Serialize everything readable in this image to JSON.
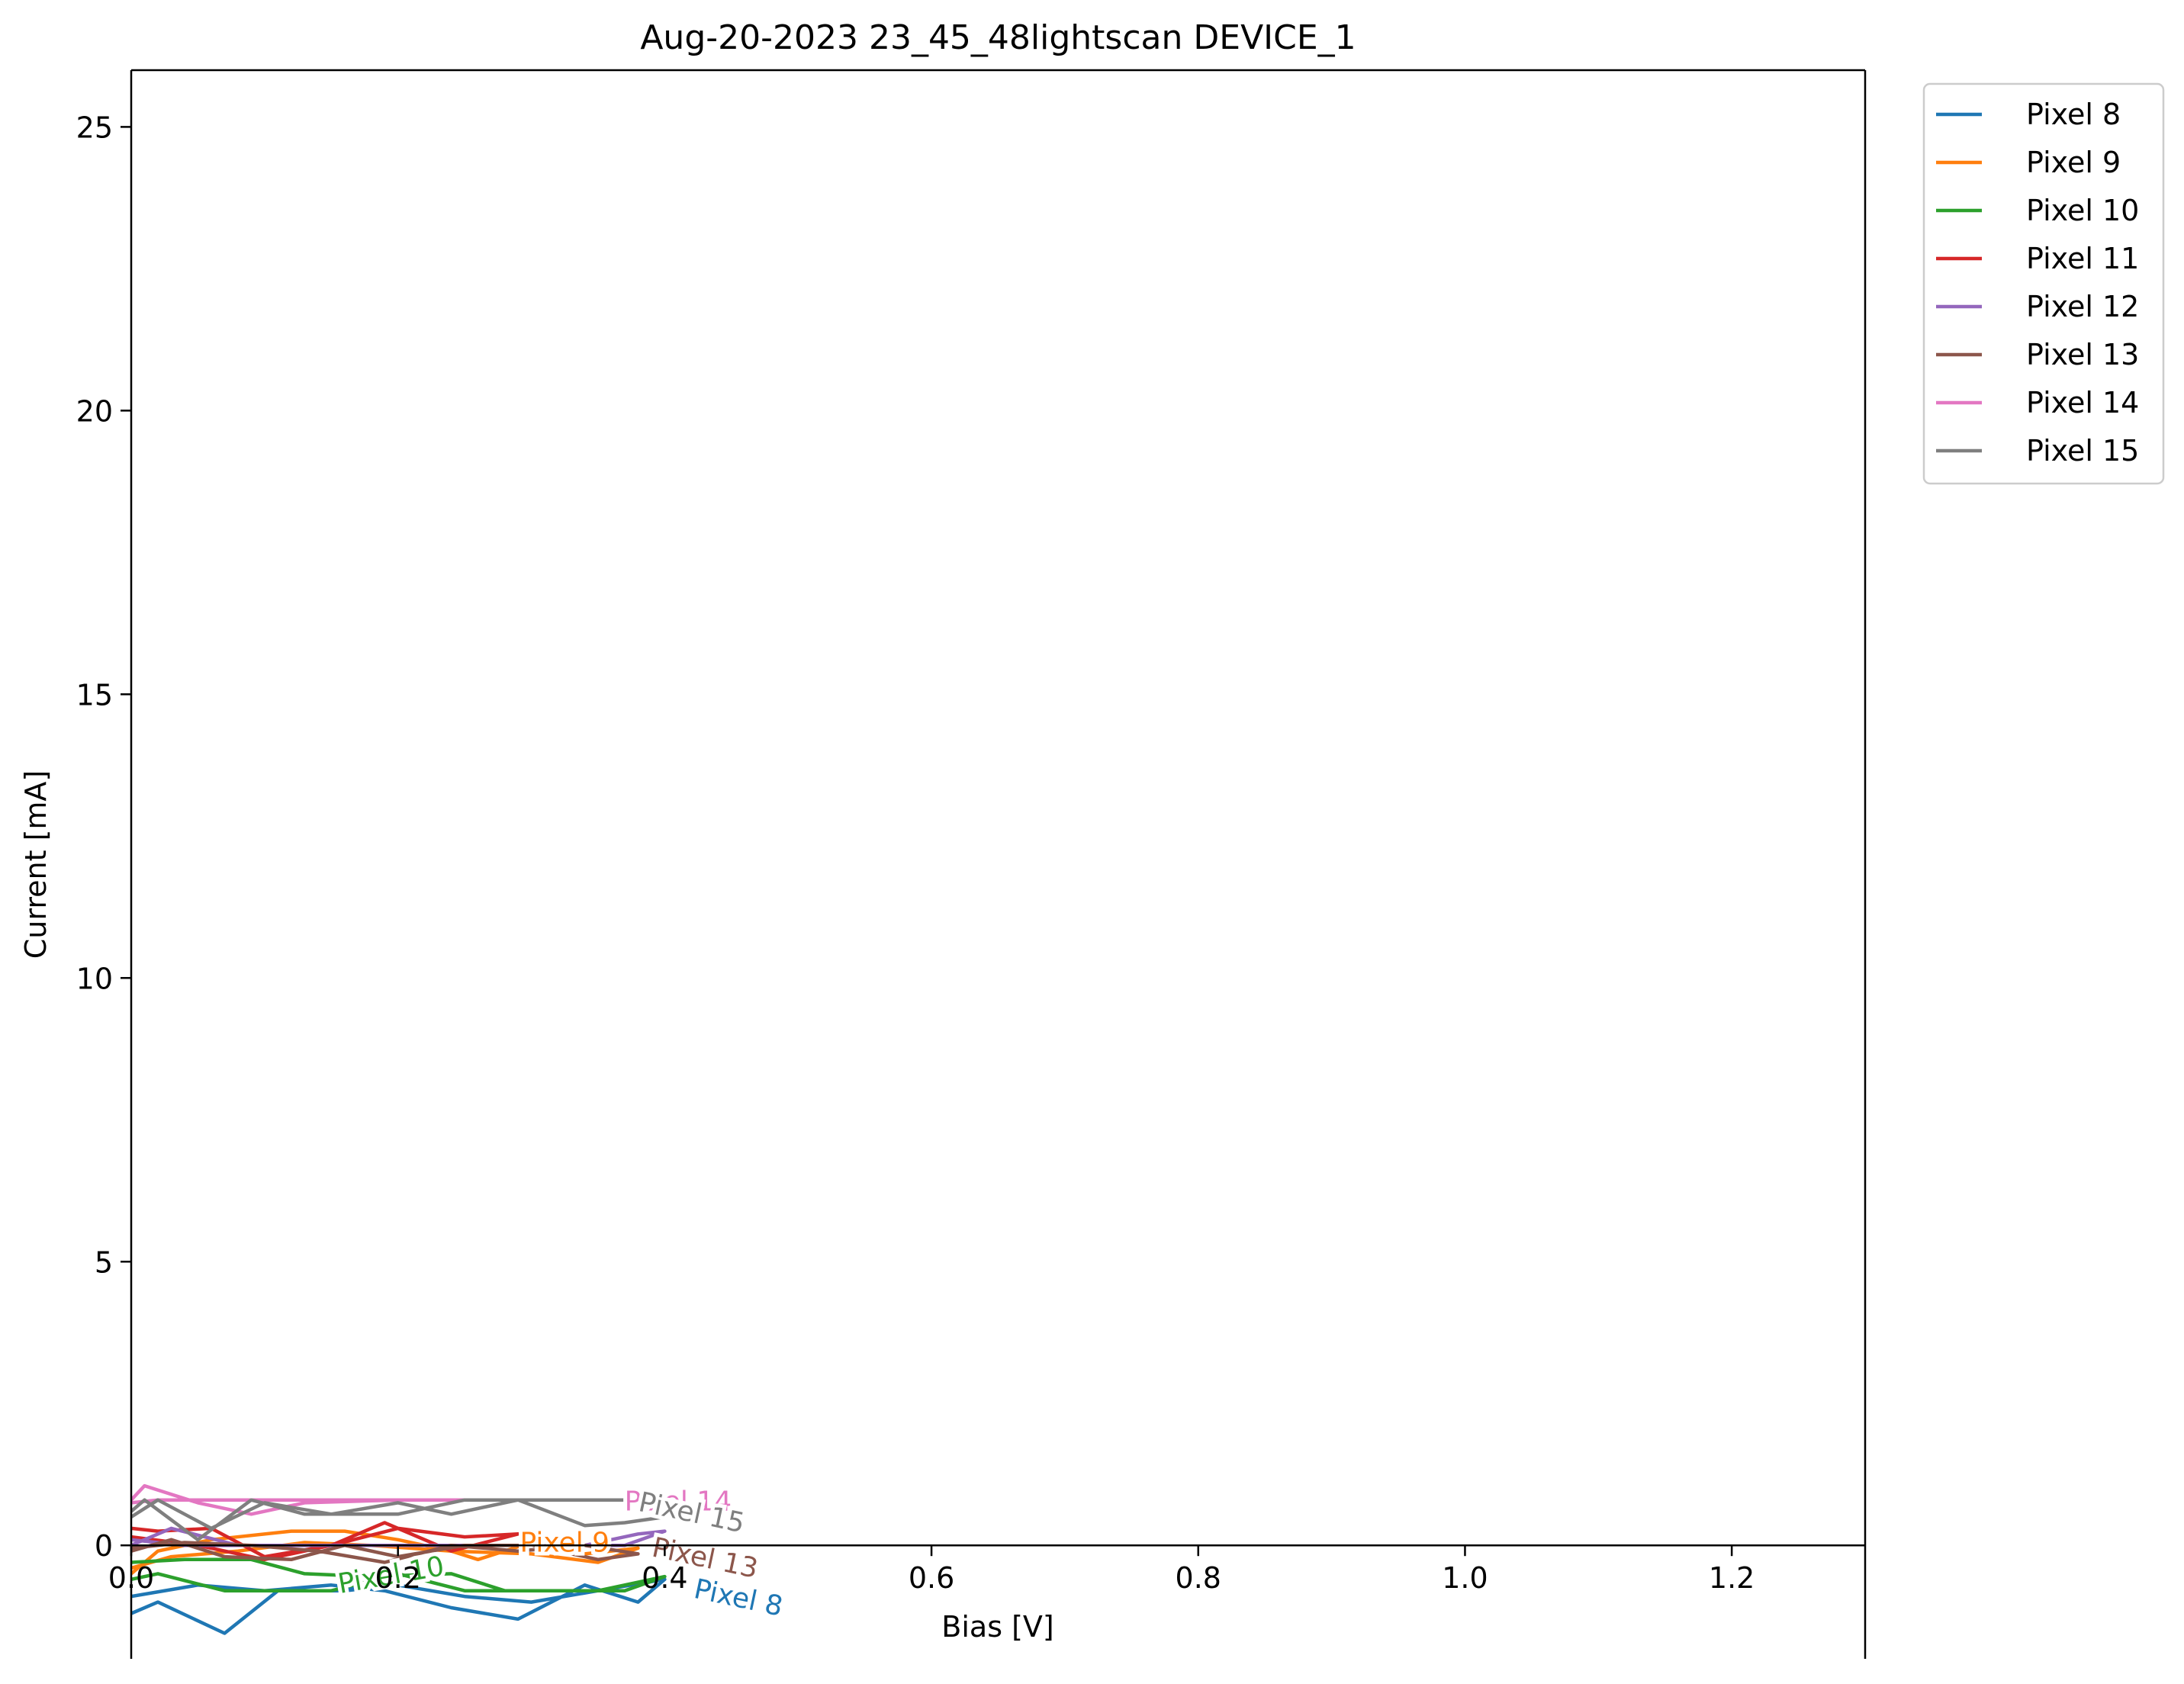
{
  "chart_data": {
    "type": "line",
    "title": "Aug-20-2023 23_45_48lightscan DEVICE_1",
    "xlabel": "Bias [V]",
    "ylabel": "Current [mA]",
    "xlim": [
      0.0,
      1.3
    ],
    "ylim": [
      -2.0,
      26.0
    ],
    "xticks": [
      0.0,
      0.2,
      0.4,
      0.6,
      0.8,
      1.0,
      1.2
    ],
    "xtick_labels": [
      "0.0",
      "0.2",
      "0.4",
      "0.6",
      "0.8",
      "1.0",
      "1.2"
    ],
    "yticks": [
      0,
      5,
      10,
      15,
      20,
      25
    ],
    "ytick_labels": [
      "0",
      "5",
      "10",
      "15",
      "20",
      "25"
    ],
    "zero_line": true,
    "grid": false,
    "legend_position": "outside top-right",
    "series": [
      {
        "name": "Pixel 8",
        "color": "#1f77b4",
        "x": [
          0.0,
          0.02,
          0.07,
          0.11,
          0.16,
          0.2,
          0.25,
          0.3,
          0.35,
          0.4,
          0.38,
          0.34,
          0.29,
          0.24,
          0.19,
          0.15,
          0.1,
          0.05,
          0.0
        ],
        "y": [
          -1.2,
          -1.0,
          -1.55,
          -0.8,
          -0.8,
          -0.7,
          -0.9,
          -1.0,
          -0.8,
          -0.6,
          -1.0,
          -0.7,
          -1.3,
          -1.1,
          -0.8,
          -0.7,
          -0.8,
          -0.7,
          -0.9
        ]
      },
      {
        "name": "Pixel 9",
        "color": "#ff7f0e",
        "x": [
          0.0,
          0.02,
          0.06,
          0.12,
          0.16,
          0.2,
          0.24,
          0.26,
          0.3,
          0.34,
          0.38,
          0.35,
          0.3,
          0.24,
          0.18,
          0.13,
          0.08,
          0.03,
          0.0
        ],
        "y": [
          -0.5,
          -0.1,
          0.1,
          0.25,
          0.25,
          0.1,
          -0.1,
          -0.25,
          0.05,
          -0.15,
          -0.05,
          -0.3,
          -0.15,
          -0.1,
          0.0,
          0.05,
          -0.1,
          -0.2,
          -0.4
        ]
      },
      {
        "name": "Pixel 10",
        "color": "#2ca02c",
        "x": [
          0.0,
          0.02,
          0.07,
          0.1,
          0.15,
          0.2,
          0.25,
          0.3,
          0.35,
          0.39,
          0.4,
          0.37,
          0.33,
          0.28,
          0.24,
          0.18,
          0.13,
          0.09,
          0.04,
          0.0
        ],
        "y": [
          -0.6,
          -0.5,
          -0.8,
          -0.8,
          -0.8,
          -0.5,
          -0.8,
          -0.8,
          -0.8,
          -0.6,
          -0.55,
          -0.8,
          -0.8,
          -0.8,
          -0.5,
          -0.55,
          -0.5,
          -0.25,
          -0.25,
          -0.3
        ]
      },
      {
        "name": "Pixel 11",
        "color": "#d62728",
        "x": [
          0.0,
          0.02,
          0.06,
          0.1,
          0.15,
          0.2,
          0.25,
          0.29,
          0.24,
          0.19,
          0.15,
          0.1,
          0.05,
          0.0
        ],
        "y": [
          0.3,
          0.25,
          0.3,
          -0.2,
          0.0,
          0.3,
          0.15,
          0.2,
          -0.1,
          0.4,
          0.0,
          -0.25,
          0.0,
          0.15
        ]
      },
      {
        "name": "Pixel 12",
        "color": "#9467bd",
        "x": [
          0.0,
          0.03,
          0.08,
          0.13,
          0.18,
          0.24,
          0.29,
          0.34,
          0.38,
          0.4,
          0.37,
          0.32,
          0.26,
          0.2,
          0.14,
          0.09,
          0.04,
          0.0
        ],
        "y": [
          0.0,
          0.3,
          0.0,
          0.0,
          0.0,
          0.0,
          0.0,
          0.0,
          0.2,
          0.25,
          0.0,
          0.0,
          0.0,
          0.0,
          0.0,
          0.0,
          0.0,
          0.1
        ]
      },
      {
        "name": "Pixel 13",
        "color": "#8c564b",
        "x": [
          0.0,
          0.03,
          0.07,
          0.12,
          0.16,
          0.2,
          0.25,
          0.3,
          0.35,
          0.38,
          0.34,
          0.29,
          0.24,
          0.19,
          0.14,
          0.09,
          0.04,
          0.0
        ],
        "y": [
          -0.1,
          0.1,
          -0.2,
          -0.25,
          0.0,
          -0.2,
          0.0,
          0.0,
          -0.25,
          -0.15,
          0.0,
          -0.1,
          0.0,
          -0.3,
          -0.1,
          0.0,
          0.05,
          -0.05
        ]
      },
      {
        "name": "Pixel 14",
        "color": "#e377c2",
        "x": [
          0.0,
          0.01,
          0.05,
          0.09,
          0.13,
          0.2,
          0.28,
          0.36,
          0.34,
          0.27,
          0.19,
          0.12,
          0.06,
          0.02,
          0.0
        ],
        "y": [
          0.8,
          1.05,
          0.75,
          0.55,
          0.75,
          0.8,
          0.8,
          0.8,
          0.8,
          0.8,
          0.8,
          0.8,
          0.8,
          0.8,
          0.75
        ]
      },
      {
        "name": "Pixel 15",
        "color": "#7f7f7f",
        "x": [
          0.0,
          0.01,
          0.05,
          0.09,
          0.13,
          0.2,
          0.25,
          0.29,
          0.34,
          0.37,
          0.4,
          0.38,
          0.34,
          0.29,
          0.24,
          0.2,
          0.15,
          0.1,
          0.06,
          0.02,
          0.0
        ],
        "y": [
          0.6,
          0.8,
          0.1,
          0.8,
          0.55,
          0.55,
          0.8,
          0.8,
          0.35,
          0.4,
          0.5,
          0.8,
          0.8,
          0.8,
          0.55,
          0.75,
          0.55,
          0.75,
          0.3,
          0.8,
          0.5
        ]
      }
    ],
    "inline_labels": [
      {
        "text": "Pixel 8",
        "series": "Pixel 8",
        "x": 0.455,
        "y": -0.95,
        "angle": 12
      },
      {
        "text": "Pixel 9",
        "series": "Pixel 9",
        "x": 0.325,
        "y": 0.02,
        "angle": 0
      },
      {
        "text": "Pixel 10",
        "series": "Pixel 10",
        "x": 0.195,
        "y": -0.55,
        "angle": -10
      },
      {
        "text": "Pixel 13",
        "series": "Pixel 13",
        "x": 0.43,
        "y": -0.25,
        "angle": 12
      },
      {
        "text": "Pixel 14",
        "series": "Pixel 14",
        "x": 0.41,
        "y": 0.75,
        "angle": 0
      },
      {
        "text": "Pixel 15",
        "series": "Pixel 15",
        "x": 0.42,
        "y": 0.55,
        "angle": 12
      }
    ]
  }
}
